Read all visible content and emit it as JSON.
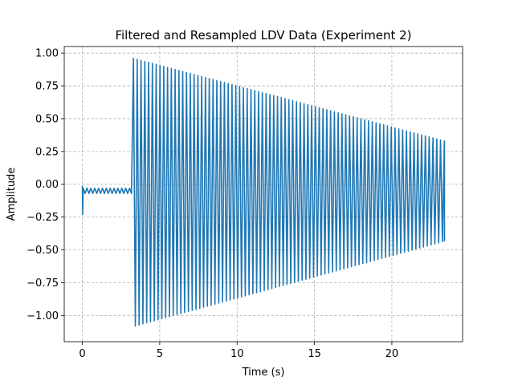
{
  "chart_data": {
    "type": "line",
    "title": "Filtered and Resampled LDV Data (Experiment 2)",
    "xlabel": "Time (s)",
    "ylabel": "Amplitude",
    "xlim": [
      -1.17,
      24.57
    ],
    "ylim": [
      -1.2,
      1.05
    ],
    "xticks": [
      0,
      5,
      10,
      15,
      20
    ],
    "xtick_labels": [
      "0",
      "5",
      "10",
      "15",
      "20"
    ],
    "yticks": [
      -1.0,
      -0.75,
      -0.5,
      -0.25,
      0.0,
      0.25,
      0.5,
      0.75,
      1.0
    ],
    "ytick_labels": [
      "−1.00",
      "−0.75",
      "−0.50",
      "−0.25",
      "0.00",
      "0.25",
      "0.50",
      "0.75",
      "1.00"
    ],
    "grid": true,
    "series": [
      {
        "name": "",
        "color": "#1f77b4",
        "segments": [
          {
            "phase": "pre-impact",
            "t_start": 0.0,
            "t_end": 3.3,
            "upper": -0.03,
            "lower": -0.07,
            "initial_dip": -0.23,
            "period": 0.25
          },
          {
            "phase": "decaying-oscillation",
            "t_start": 3.3,
            "t_end": 23.4,
            "upper_start": 0.96,
            "upper_end": 0.33,
            "lower_start": -1.08,
            "lower_end": -0.43,
            "period": 0.245,
            "final_value": -0.4
          }
        ]
      }
    ]
  }
}
